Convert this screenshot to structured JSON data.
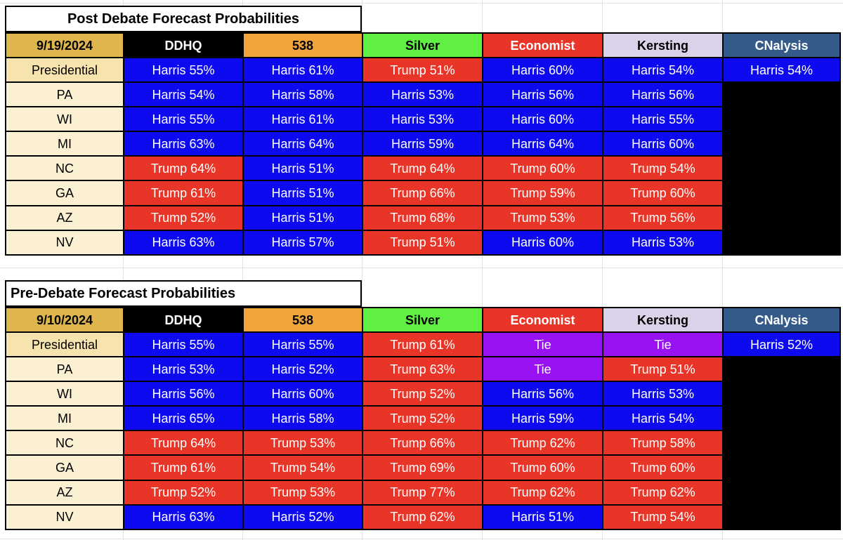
{
  "sheet": {
    "colors": {
      "harris": "#0E0AF0",
      "trump": "#E93528",
      "tie": "#9913F2",
      "empty": "#000000",
      "date_header_bg": "#DFB64E",
      "label_presidential_bg": "#F6E3AE",
      "label_state_bg": "#FCF0D2",
      "cell_text": "#FFFFFF",
      "label_text": "#000000",
      "gridline": "#E2E2E2",
      "border": "#000000"
    },
    "tables": [
      {
        "title": "Post Debate Forecast Probabilities",
        "title_align": "center",
        "date": "9/19/2024",
        "columns": [
          {
            "label": "DDHQ",
            "bg": "#000000",
            "fg": "#FFFFFF"
          },
          {
            "label": "538",
            "bg": "#F0A43C",
            "fg": "#000000"
          },
          {
            "label": "Silver",
            "bg": "#5FF043",
            "fg": "#000000"
          },
          {
            "label": "Economist",
            "bg": "#E93528",
            "fg": "#FFFFFF"
          },
          {
            "label": "Kersting",
            "bg": "#D9D2E9",
            "fg": "#000000"
          },
          {
            "label": "CNalysis",
            "bg": "#345A8A",
            "fg": "#FFFFFF"
          }
        ],
        "rows": [
          {
            "label": "Presidential",
            "type": "presidential",
            "cells": [
              {
                "text": "Harris 55%",
                "kind": "harris"
              },
              {
                "text": "Harris 61%",
                "kind": "harris"
              },
              {
                "text": "Trump 51%",
                "kind": "trump"
              },
              {
                "text": "Harris 60%",
                "kind": "harris"
              },
              {
                "text": "Harris 54%",
                "kind": "harris"
              },
              {
                "text": "Harris 54%",
                "kind": "harris"
              }
            ]
          },
          {
            "label": "PA",
            "type": "state",
            "cells": [
              {
                "text": "Harris 54%",
                "kind": "harris"
              },
              {
                "text": "Harris 58%",
                "kind": "harris"
              },
              {
                "text": "Harris 53%",
                "kind": "harris"
              },
              {
                "text": "Harris 56%",
                "kind": "harris"
              },
              {
                "text": "Harris 56%",
                "kind": "harris"
              },
              {
                "text": "",
                "kind": "empty"
              }
            ]
          },
          {
            "label": "WI",
            "type": "state",
            "cells": [
              {
                "text": "Harris 55%",
                "kind": "harris"
              },
              {
                "text": "Harris 61%",
                "kind": "harris"
              },
              {
                "text": "Harris 53%",
                "kind": "harris"
              },
              {
                "text": "Harris 60%",
                "kind": "harris"
              },
              {
                "text": "Harris 55%",
                "kind": "harris"
              },
              {
                "text": "",
                "kind": "empty"
              }
            ]
          },
          {
            "label": "MI",
            "type": "state",
            "cells": [
              {
                "text": "Harris 63%",
                "kind": "harris"
              },
              {
                "text": "Harris 64%",
                "kind": "harris"
              },
              {
                "text": "Harris 59%",
                "kind": "harris"
              },
              {
                "text": "Harris 64%",
                "kind": "harris"
              },
              {
                "text": "Harris 60%",
                "kind": "harris"
              },
              {
                "text": "",
                "kind": "empty"
              }
            ]
          },
          {
            "label": "NC",
            "type": "state",
            "cells": [
              {
                "text": "Trump 64%",
                "kind": "trump"
              },
              {
                "text": "Harris 51%",
                "kind": "harris"
              },
              {
                "text": "Trump 64%",
                "kind": "trump"
              },
              {
                "text": "Trump 60%",
                "kind": "trump"
              },
              {
                "text": "Trump 54%",
                "kind": "trump"
              },
              {
                "text": "",
                "kind": "empty"
              }
            ]
          },
          {
            "label": "GA",
            "type": "state",
            "cells": [
              {
                "text": "Trump 61%",
                "kind": "trump"
              },
              {
                "text": "Harris 51%",
                "kind": "harris"
              },
              {
                "text": "Trump 66%",
                "kind": "trump"
              },
              {
                "text": "Trump 59%",
                "kind": "trump"
              },
              {
                "text": "Trump 60%",
                "kind": "trump"
              },
              {
                "text": "",
                "kind": "empty"
              }
            ]
          },
          {
            "label": "AZ",
            "type": "state",
            "cells": [
              {
                "text": "Trump 52%",
                "kind": "trump"
              },
              {
                "text": "Harris 51%",
                "kind": "harris"
              },
              {
                "text": "Trump 68%",
                "kind": "trump"
              },
              {
                "text": "Trump 53%",
                "kind": "trump"
              },
              {
                "text": "Trump 56%",
                "kind": "trump"
              },
              {
                "text": "",
                "kind": "empty"
              }
            ]
          },
          {
            "label": "NV",
            "type": "state",
            "cells": [
              {
                "text": "Harris 63%",
                "kind": "harris"
              },
              {
                "text": "Harris 57%",
                "kind": "harris"
              },
              {
                "text": "Trump 51%",
                "kind": "trump"
              },
              {
                "text": "Harris 60%",
                "kind": "harris"
              },
              {
                "text": "Harris 53%",
                "kind": "harris"
              },
              {
                "text": "",
                "kind": "empty"
              }
            ]
          }
        ]
      },
      {
        "title": "Pre-Debate Forecast Probabilities",
        "title_align": "left",
        "date": "9/10/2024",
        "columns": [
          {
            "label": "DDHQ",
            "bg": "#000000",
            "fg": "#FFFFFF"
          },
          {
            "label": "538",
            "bg": "#F0A43C",
            "fg": "#000000"
          },
          {
            "label": "Silver",
            "bg": "#5FF043",
            "fg": "#000000"
          },
          {
            "label": "Economist",
            "bg": "#E93528",
            "fg": "#FFFFFF"
          },
          {
            "label": "Kersting",
            "bg": "#D9D2E9",
            "fg": "#000000"
          },
          {
            "label": "CNalysis",
            "bg": "#345A8A",
            "fg": "#FFFFFF"
          }
        ],
        "rows": [
          {
            "label": "Presidential",
            "type": "presidential",
            "cells": [
              {
                "text": "Harris 55%",
                "kind": "harris"
              },
              {
                "text": "Harris 55%",
                "kind": "harris"
              },
              {
                "text": "Trump 61%",
                "kind": "trump"
              },
              {
                "text": "Tie",
                "kind": "tie"
              },
              {
                "text": "Tie",
                "kind": "tie"
              },
              {
                "text": "Harris 52%",
                "kind": "harris"
              }
            ]
          },
          {
            "label": "PA",
            "type": "state",
            "cells": [
              {
                "text": "Harris 53%",
                "kind": "harris"
              },
              {
                "text": "Harris 52%",
                "kind": "harris"
              },
              {
                "text": "Trump 63%",
                "kind": "trump"
              },
              {
                "text": "Tie",
                "kind": "tie"
              },
              {
                "text": "Trump 51%",
                "kind": "trump"
              },
              {
                "text": "",
                "kind": "empty"
              }
            ]
          },
          {
            "label": "WI",
            "type": "state",
            "cells": [
              {
                "text": "Harris 56%",
                "kind": "harris"
              },
              {
                "text": "Harris 60%",
                "kind": "harris"
              },
              {
                "text": "Trump 52%",
                "kind": "trump"
              },
              {
                "text": "Harris 56%",
                "kind": "harris"
              },
              {
                "text": "Harris 53%",
                "kind": "harris"
              },
              {
                "text": "",
                "kind": "empty"
              }
            ]
          },
          {
            "label": "MI",
            "type": "state",
            "cells": [
              {
                "text": "Harris 65%",
                "kind": "harris"
              },
              {
                "text": "Harris 58%",
                "kind": "harris"
              },
              {
                "text": "Trump 52%",
                "kind": "trump"
              },
              {
                "text": "Harris 59%",
                "kind": "harris"
              },
              {
                "text": "Harris 54%",
                "kind": "harris"
              },
              {
                "text": "",
                "kind": "empty"
              }
            ]
          },
          {
            "label": "NC",
            "type": "state",
            "cells": [
              {
                "text": "Trump 64%",
                "kind": "trump"
              },
              {
                "text": "Trump 53%",
                "kind": "trump"
              },
              {
                "text": "Trump 66%",
                "kind": "trump"
              },
              {
                "text": "Trump 62%",
                "kind": "trump"
              },
              {
                "text": "Trump 58%",
                "kind": "trump"
              },
              {
                "text": "",
                "kind": "empty"
              }
            ]
          },
          {
            "label": "GA",
            "type": "state",
            "cells": [
              {
                "text": "Trump 61%",
                "kind": "trump"
              },
              {
                "text": "Trump 54%",
                "kind": "trump"
              },
              {
                "text": "Trump 69%",
                "kind": "trump"
              },
              {
                "text": "Trump 60%",
                "kind": "trump"
              },
              {
                "text": "Trump 60%",
                "kind": "trump"
              },
              {
                "text": "",
                "kind": "empty"
              }
            ]
          },
          {
            "label": "AZ",
            "type": "state",
            "cells": [
              {
                "text": "Trump 52%",
                "kind": "trump"
              },
              {
                "text": "Trump 53%",
                "kind": "trump"
              },
              {
                "text": "Trump 77%",
                "kind": "trump"
              },
              {
                "text": "Trump 62%",
                "kind": "trump"
              },
              {
                "text": "Trump 62%",
                "kind": "trump"
              },
              {
                "text": "",
                "kind": "empty"
              }
            ]
          },
          {
            "label": "NV",
            "type": "state",
            "cells": [
              {
                "text": "Harris 63%",
                "kind": "harris"
              },
              {
                "text": "Harris 52%",
                "kind": "harris"
              },
              {
                "text": "Trump 62%",
                "kind": "trump"
              },
              {
                "text": "Harris 51%",
                "kind": "harris"
              },
              {
                "text": "Trump 54%",
                "kind": "trump"
              },
              {
                "text": "",
                "kind": "empty"
              }
            ]
          }
        ]
      }
    ]
  }
}
